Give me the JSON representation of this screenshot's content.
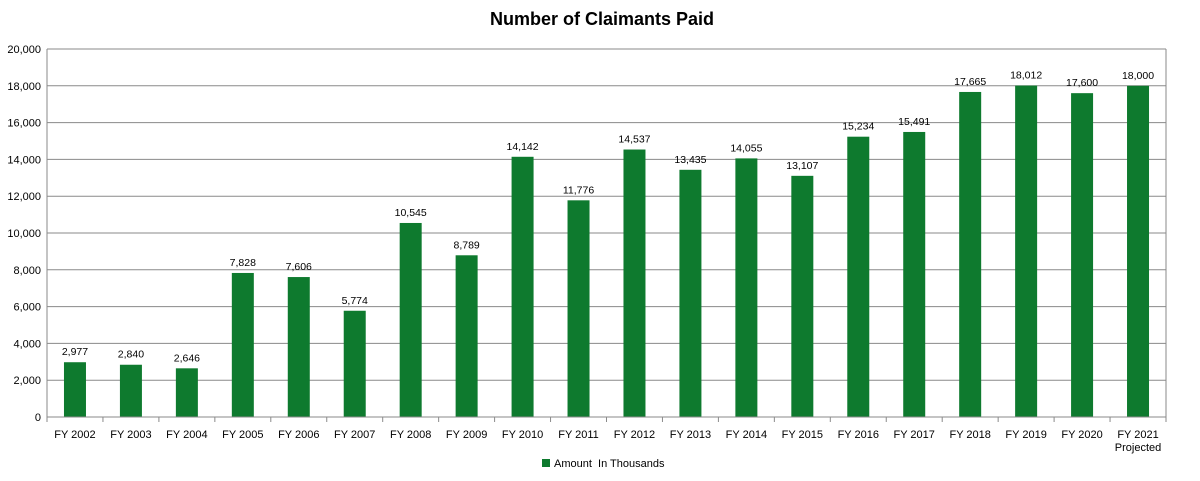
{
  "chart_data": {
    "type": "bar",
    "title": "Number of Claimants Paid",
    "xlabel": "",
    "ylabel": "",
    "ylim": [
      0,
      20000
    ],
    "yticks": [
      "0",
      "2,000",
      "4,000",
      "6,000",
      "8,000",
      "10,000",
      "12,000",
      "14,000",
      "16,000",
      "18,000",
      "20,000"
    ],
    "grid": true,
    "legend_position": "bottom",
    "categories": [
      [
        "FY 2002"
      ],
      [
        "FY 2003"
      ],
      [
        "FY 2004"
      ],
      [
        "FY 2005"
      ],
      [
        "FY 2006"
      ],
      [
        "FY 2007"
      ],
      [
        "FY 2008"
      ],
      [
        "FY 2009"
      ],
      [
        "FY 2010"
      ],
      [
        "FY 2011"
      ],
      [
        "FY 2012"
      ],
      [
        "FY 2013"
      ],
      [
        "FY 2014"
      ],
      [
        "FY 2015"
      ],
      [
        "FY 2016"
      ],
      [
        "FY 2017"
      ],
      [
        "FY 2018"
      ],
      [
        "FY 2019"
      ],
      [
        "FY 2020"
      ],
      [
        "FY 2021",
        "Projected"
      ]
    ],
    "series": [
      {
        "name": "Amount  In Thousands",
        "color": "#0e7a2e",
        "values": [
          2977,
          2840,
          2646,
          7828,
          7606,
          5774,
          10545,
          8789,
          14142,
          11776,
          14537,
          13435,
          14055,
          13107,
          15234,
          15491,
          17665,
          18012,
          17600,
          18000
        ],
        "labels": [
          "2,977",
          "2,840",
          "2,646",
          "7,828",
          "7,606",
          "5,774",
          "10,545",
          "8,789",
          "14,142",
          "11,776",
          "14,537",
          "13,435",
          "14,055",
          "13,107",
          "15,234",
          "15,491",
          "17,665",
          "18,012",
          "17,600",
          "18,000"
        ]
      }
    ]
  }
}
